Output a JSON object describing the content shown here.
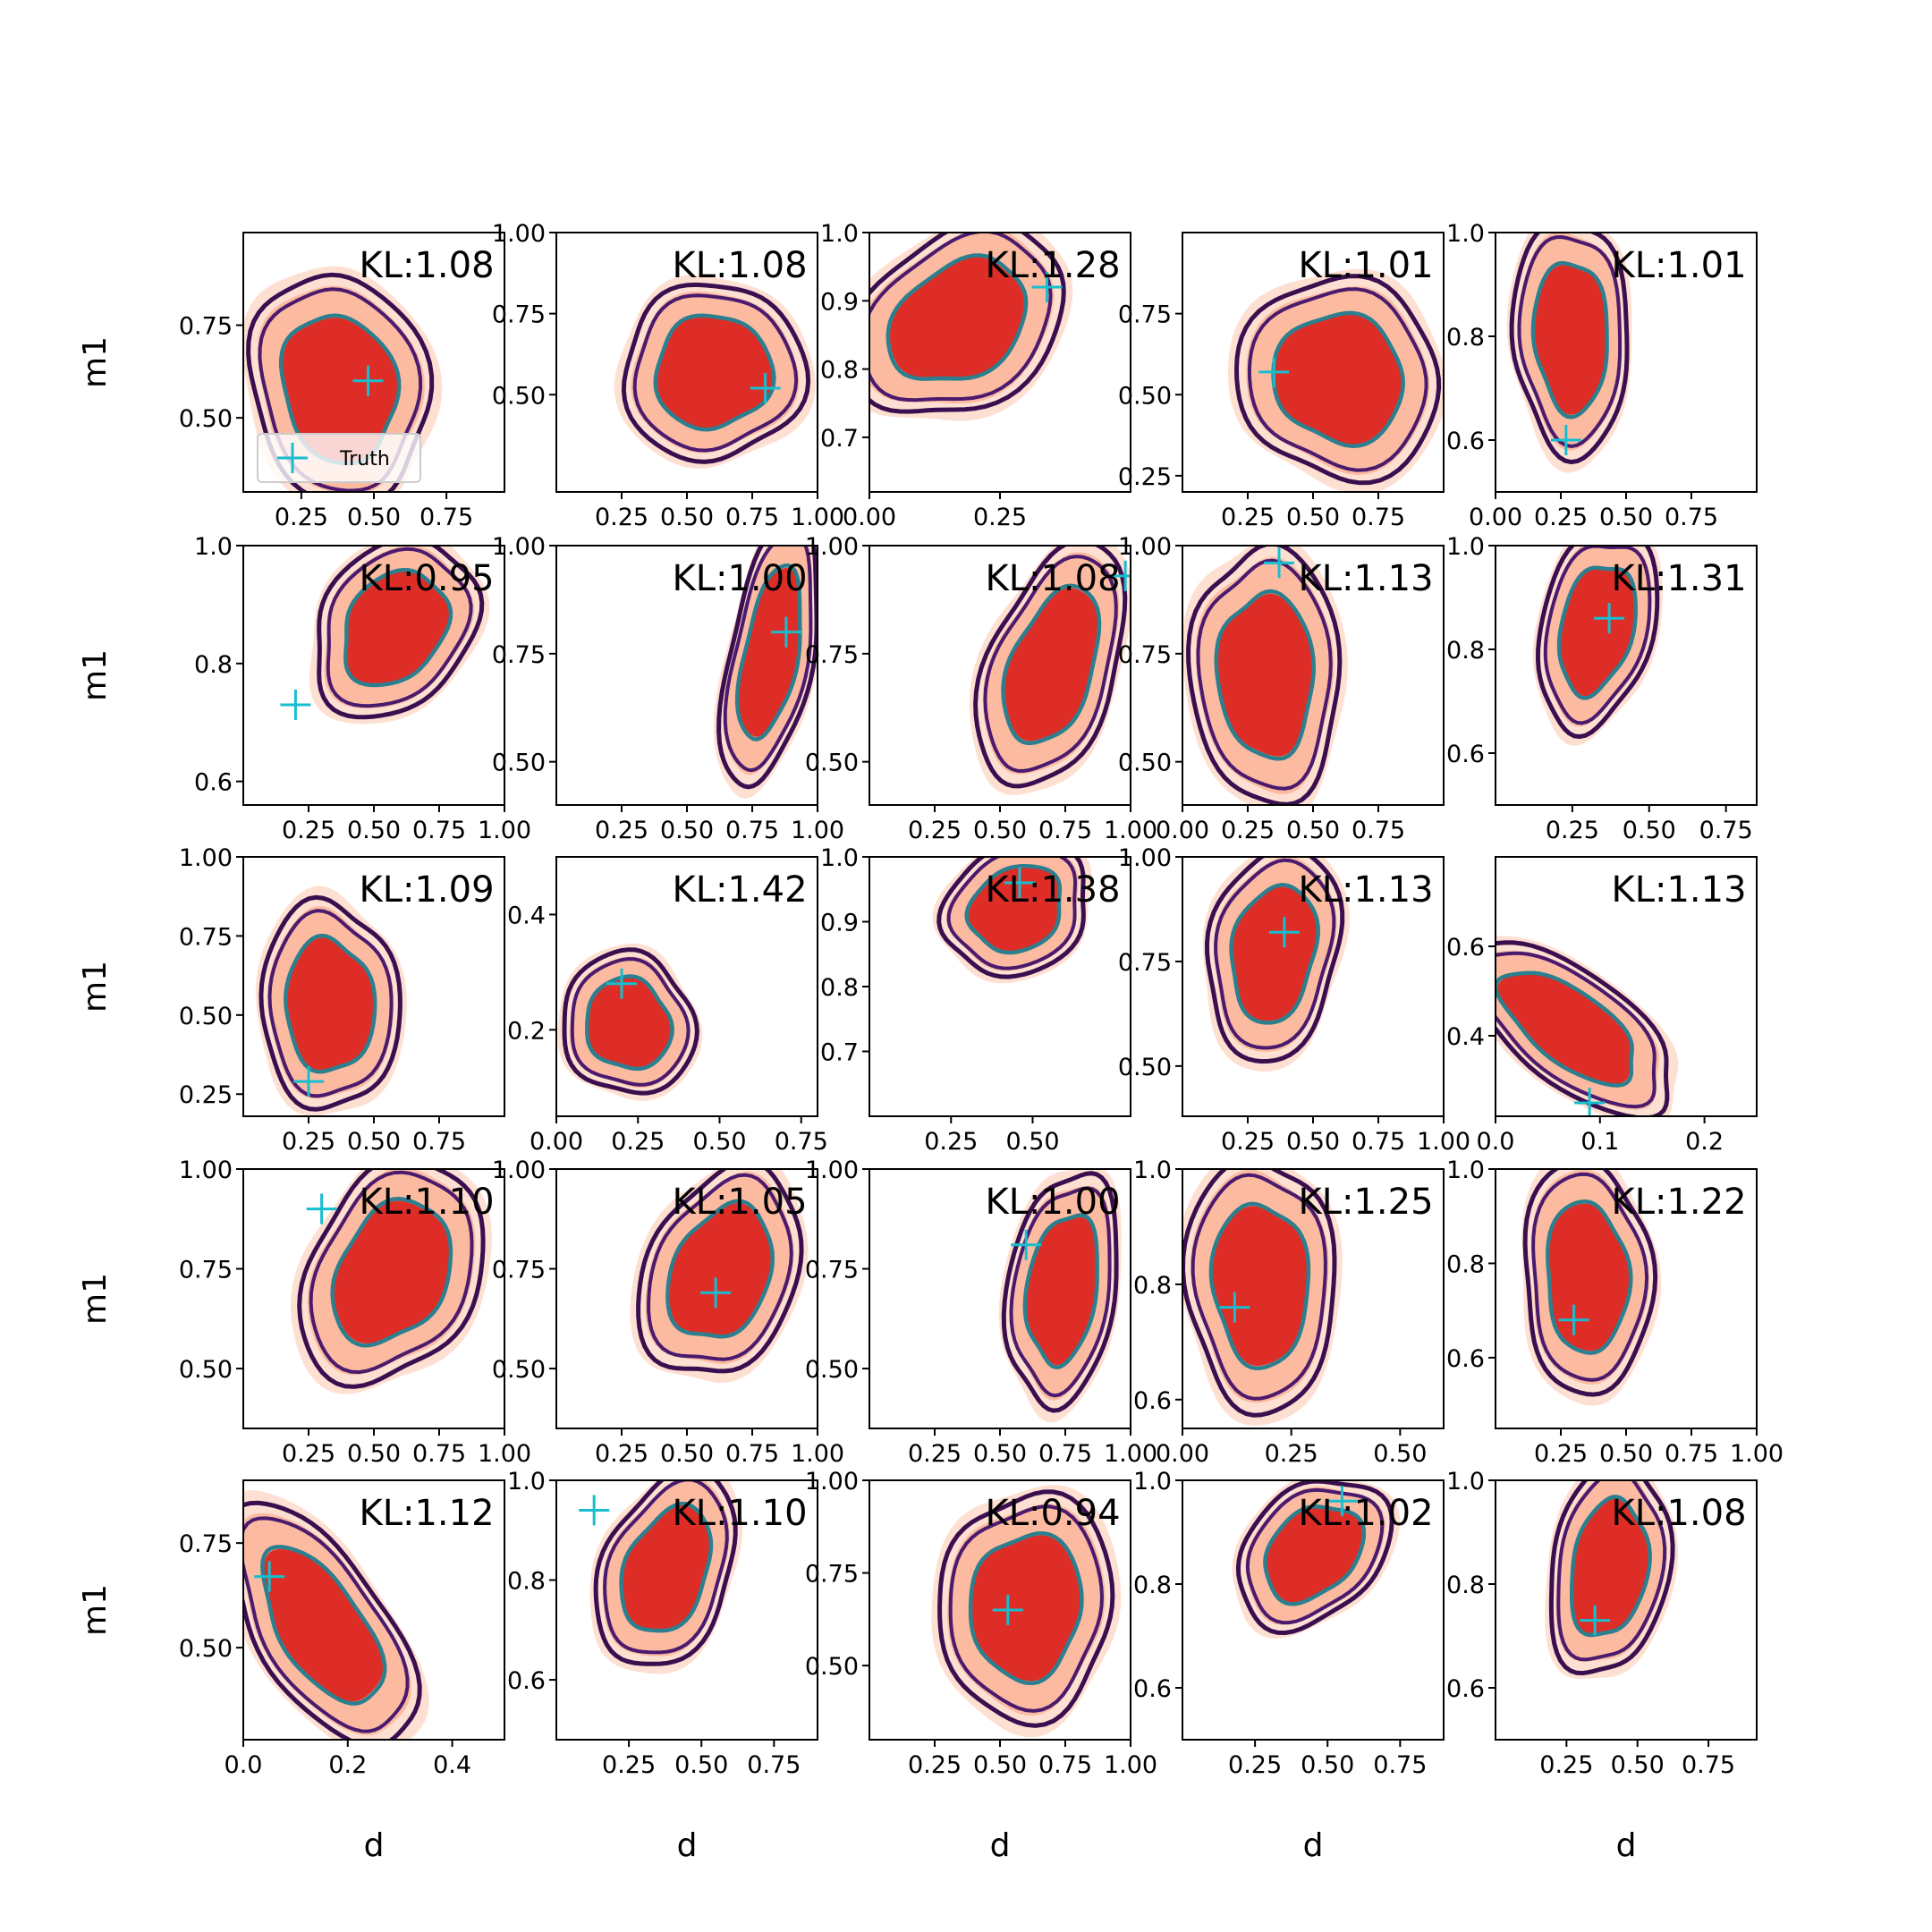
{
  "figure": {
    "xlabel": "d",
    "ylabel": "m1",
    "legend_label": "Truth"
  },
  "colors": {
    "fill_outer": "#fee0d2",
    "fill_mid": "#fcbba1",
    "fill_inner": "#de2d26",
    "contour_outer": "#3b0f4f",
    "contour_mid": "#4a1a6e",
    "contour_inner": "#2c7f8e",
    "truth_marker": "#17becf",
    "axes": "#000000"
  },
  "chart_data": [
    {
      "row": 0,
      "col": 0,
      "type": "contour",
      "kl": "KL:1.08",
      "title": "KL:1.08",
      "xlim": [
        0.05,
        0.95
      ],
      "ylim": [
        0.3,
        1.0
      ],
      "xticks": [
        0.25,
        0.5,
        0.75
      ],
      "xtick_labels": [
        "0.25",
        "0.50",
        "0.75"
      ],
      "yticks": [
        0.5,
        0.75
      ],
      "ytick_labels": [
        "0.50",
        "0.75"
      ],
      "center": [
        0.38,
        0.58
      ],
      "spread": [
        0.27,
        0.28
      ],
      "skew": -0.2,
      "truth": [
        0.48,
        0.6
      ],
      "legend": true
    },
    {
      "row": 0,
      "col": 1,
      "type": "contour",
      "kl": "KL:1.08",
      "title": "KL:1.08",
      "xlim": [
        0.0,
        1.0
      ],
      "ylim": [
        0.2,
        1.0
      ],
      "xticks": [
        0.25,
        0.5,
        0.75,
        1.0
      ],
      "xtick_labels": [
        "0.25",
        "0.50",
        "0.75",
        "1.00"
      ],
      "yticks": [
        0.5,
        0.75,
        1.0
      ],
      "ytick_labels": [
        "0.50",
        "0.75",
        "1.00"
      ],
      "center": [
        0.6,
        0.57
      ],
      "spread": [
        0.3,
        0.25
      ],
      "skew": 0.0,
      "truth": [
        0.8,
        0.52
      ]
    },
    {
      "row": 0,
      "col": 2,
      "type": "contour",
      "kl": "KL:1.28",
      "title": "KL:1.28",
      "xlim": [
        0.0,
        0.5
      ],
      "ylim": [
        0.62,
        1.0
      ],
      "xticks": [
        0.0,
        0.25
      ],
      "xtick_labels": [
        "0.00",
        "0.25"
      ],
      "yticks": [
        0.7,
        0.8,
        0.9,
        1.0
      ],
      "ytick_labels": [
        "0.7",
        "0.8",
        "0.9",
        "1.0"
      ],
      "center": [
        0.17,
        0.87
      ],
      "spread": [
        0.17,
        0.13
      ],
      "skew": 0.5,
      "truth": [
        0.34,
        0.92
      ]
    },
    {
      "row": 0,
      "col": 3,
      "type": "contour",
      "kl": "KL:1.01",
      "title": "KL:1.01",
      "xlim": [
        0.0,
        1.0
      ],
      "ylim": [
        0.2,
        1.0
      ],
      "xticks": [
        0.25,
        0.5,
        0.75
      ],
      "xtick_labels": [
        "0.25",
        "0.50",
        "0.75"
      ],
      "yticks": [
        0.25,
        0.5,
        0.75
      ],
      "ytick_labels": [
        "0.25",
        "0.50",
        "0.75"
      ],
      "center": [
        0.6,
        0.55
      ],
      "spread": [
        0.34,
        0.28
      ],
      "skew": 0.0,
      "truth": [
        0.35,
        0.57
      ]
    },
    {
      "row": 0,
      "col": 4,
      "type": "contour",
      "kl": "KL:1.01",
      "title": "KL:1.01",
      "xlim": [
        0.0,
        1.0
      ],
      "ylim": [
        0.5,
        1.0
      ],
      "xticks": [
        0.0,
        0.25,
        0.5,
        0.75
      ],
      "xtick_labels": [
        "0.00",
        "0.25",
        "0.50",
        "0.75"
      ],
      "yticks": [
        0.6,
        0.8,
        1.0
      ],
      "ytick_labels": [
        "0.6",
        "0.8",
        "1.0"
      ],
      "center": [
        0.29,
        0.8
      ],
      "spread": [
        0.2,
        0.2
      ],
      "skew": 0.0,
      "truth": [
        0.27,
        0.6
      ]
    },
    {
      "row": 1,
      "col": 0,
      "type": "contour",
      "kl": "KL:0.95",
      "title": "KL:0.95",
      "xlim": [
        0.0,
        1.0
      ],
      "ylim": [
        0.56,
        1.0
      ],
      "xticks": [
        0.25,
        0.5,
        0.75,
        1.0
      ],
      "xtick_labels": [
        "0.25",
        "0.50",
        "0.75",
        "1.00"
      ],
      "yticks": [
        0.6,
        0.8,
        1.0
      ],
      "ytick_labels": [
        "0.6",
        "0.8",
        "1.0"
      ],
      "center": [
        0.58,
        0.86
      ],
      "spread": [
        0.28,
        0.13
      ],
      "skew": 0.6,
      "truth": [
        0.2,
        0.73
      ]
    },
    {
      "row": 1,
      "col": 1,
      "type": "contour",
      "kl": "KL:1.00",
      "title": "KL:1.00",
      "xlim": [
        0.0,
        1.0
      ],
      "ylim": [
        0.4,
        1.0
      ],
      "xticks": [
        0.25,
        0.5,
        0.75,
        1.0
      ],
      "xtick_labels": [
        "0.25",
        "0.50",
        "0.75",
        "1.00"
      ],
      "yticks": [
        0.5,
        0.75,
        1.0
      ],
      "ytick_labels": [
        "0.50",
        "0.75",
        "1.00"
      ],
      "center": [
        0.82,
        0.75
      ],
      "spread": [
        0.15,
        0.27
      ],
      "skew": 0.3,
      "truth": [
        0.88,
        0.8
      ]
    },
    {
      "row": 1,
      "col": 2,
      "type": "contour",
      "kl": "KL:1.08",
      "title": "KL:1.08",
      "xlim": [
        0.0,
        1.0
      ],
      "ylim": [
        0.4,
        1.0
      ],
      "xticks": [
        0.25,
        0.5,
        0.75,
        1.0
      ],
      "xtick_labels": [
        "0.25",
        "0.50",
        "0.75",
        "1.00"
      ],
      "yticks": [
        0.5,
        0.75,
        1.0
      ],
      "ytick_labels": [
        "0.50",
        "0.75",
        "1.00"
      ],
      "center": [
        0.7,
        0.72
      ],
      "spread": [
        0.23,
        0.25
      ],
      "skew": 0.4,
      "truth": [
        0.98,
        0.93
      ]
    },
    {
      "row": 1,
      "col": 3,
      "type": "contour",
      "kl": "KL:1.13",
      "title": "KL:1.13",
      "xlim": [
        0.0,
        1.0
      ],
      "ylim": [
        0.4,
        1.0
      ],
      "xticks": [
        0.0,
        0.25,
        0.5,
        0.75
      ],
      "xtick_labels": [
        "0.00",
        "0.25",
        "0.50",
        "0.75"
      ],
      "yticks": [
        0.5,
        0.75,
        1.0
      ],
      "ytick_labels": [
        "0.50",
        "0.75",
        "1.00"
      ],
      "center": [
        0.32,
        0.7
      ],
      "spread": [
        0.25,
        0.27
      ],
      "skew": -0.1,
      "truth": [
        0.37,
        0.96
      ]
    },
    {
      "row": 1,
      "col": 4,
      "type": "contour",
      "kl": "KL:1.31",
      "title": "KL:1.31",
      "xlim": [
        0.0,
        0.85
      ],
      "ylim": [
        0.5,
        1.0
      ],
      "xticks": [
        0.25,
        0.5,
        0.75
      ],
      "xtick_labels": [
        "0.25",
        "0.50",
        "0.75"
      ],
      "yticks": [
        0.6,
        0.8,
        1.0
      ],
      "ytick_labels": [
        "0.6",
        "0.8",
        "1.0"
      ],
      "center": [
        0.33,
        0.84
      ],
      "spread": [
        0.16,
        0.18
      ],
      "skew": 0.3,
      "truth": [
        0.37,
        0.86
      ]
    },
    {
      "row": 2,
      "col": 0,
      "type": "contour",
      "kl": "KL:1.09",
      "title": "KL:1.09",
      "xlim": [
        0.0,
        1.0
      ],
      "ylim": [
        0.18,
        1.0
      ],
      "xticks": [
        0.25,
        0.5,
        0.75
      ],
      "xtick_labels": [
        "0.25",
        "0.50",
        "0.75"
      ],
      "yticks": [
        0.25,
        0.5,
        0.75,
        1.0
      ],
      "ytick_labels": [
        "0.25",
        "0.50",
        "0.75",
        "1.00"
      ],
      "center": [
        0.33,
        0.53
      ],
      "spread": [
        0.23,
        0.3
      ],
      "skew": 0.0,
      "truth": [
        0.25,
        0.29
      ]
    },
    {
      "row": 2,
      "col": 1,
      "type": "contour",
      "kl": "KL:1.42",
      "title": "KL:1.42",
      "xlim": [
        0.0,
        0.8
      ],
      "ylim": [
        0.05,
        0.5
      ],
      "xticks": [
        0.0,
        0.25,
        0.5,
        0.75
      ],
      "xtick_labels": [
        "0.00",
        "0.25",
        "0.50",
        "0.75"
      ],
      "yticks": [
        0.2,
        0.4
      ],
      "ytick_labels": [
        "0.2",
        "0.4"
      ],
      "center": [
        0.22,
        0.21
      ],
      "spread": [
        0.18,
        0.11
      ],
      "skew": 0.0,
      "truth": [
        0.2,
        0.28
      ]
    },
    {
      "row": 2,
      "col": 2,
      "type": "contour",
      "kl": "KL:1.38",
      "title": "KL:1.38",
      "xlim": [
        0.0,
        0.8
      ],
      "ylim": [
        0.6,
        1.0
      ],
      "xticks": [
        0.25,
        0.5
      ],
      "xtick_labels": [
        "0.25",
        "0.50"
      ],
      "yticks": [
        0.7,
        0.8,
        0.9,
        1.0
      ],
      "ytick_labels": [
        "0.7",
        "0.8",
        "0.9",
        "1.0"
      ],
      "center": [
        0.45,
        0.92
      ],
      "spread": [
        0.2,
        0.09
      ],
      "skew": 0.5,
      "truth": [
        0.46,
        0.96
      ]
    },
    {
      "row": 2,
      "col": 3,
      "type": "contour",
      "kl": "KL:1.13",
      "title": "KL:1.13",
      "xlim": [
        0.0,
        1.0
      ],
      "ylim": [
        0.38,
        1.0
      ],
      "xticks": [
        0.25,
        0.5,
        0.75,
        1.0
      ],
      "xtick_labels": [
        "0.25",
        "0.50",
        "0.75",
        "1.00"
      ],
      "yticks": [
        0.5,
        0.75,
        1.0
      ],
      "ytick_labels": [
        "0.50",
        "0.75",
        "1.00"
      ],
      "center": [
        0.35,
        0.77
      ],
      "spread": [
        0.23,
        0.22
      ],
      "skew": 0.2,
      "truth": [
        0.39,
        0.82
      ]
    },
    {
      "row": 2,
      "col": 4,
      "type": "contour",
      "kl": "KL:1.13",
      "title": "KL:1.13",
      "xlim": [
        0.0,
        0.25
      ],
      "ylim": [
        0.22,
        0.8
      ],
      "xticks": [
        0.0,
        0.1,
        0.2
      ],
      "xtick_labels": [
        "0.0",
        "0.1",
        "0.2"
      ],
      "yticks": [
        0.4,
        0.6
      ],
      "ytick_labels": [
        "0.4",
        "0.6"
      ],
      "center": [
        0.07,
        0.42
      ],
      "spread": [
        0.07,
        0.17
      ],
      "skew": -0.4,
      "truth": [
        0.09,
        0.25
      ]
    },
    {
      "row": 3,
      "col": 0,
      "type": "contour",
      "kl": "KL:1.10",
      "title": "KL:1.10",
      "xlim": [
        0.0,
        1.0
      ],
      "ylim": [
        0.35,
        1.0
      ],
      "xticks": [
        0.25,
        0.5,
        0.75,
        1.0
      ],
      "xtick_labels": [
        "0.25",
        "0.50",
        "0.75",
        "1.00"
      ],
      "yticks": [
        0.5,
        0.75,
        1.0
      ],
      "ytick_labels": [
        "0.50",
        "0.75",
        "1.00"
      ],
      "center": [
        0.57,
        0.74
      ],
      "spread": [
        0.3,
        0.25
      ],
      "skew": 0.3,
      "truth": [
        0.3,
        0.9
      ]
    },
    {
      "row": 3,
      "col": 1,
      "type": "contour",
      "kl": "KL:1.05",
      "title": "KL:1.05",
      "xlim": [
        0.0,
        1.0
      ],
      "ylim": [
        0.35,
        1.0
      ],
      "xticks": [
        0.25,
        0.5,
        0.75,
        1.0
      ],
      "xtick_labels": [
        "0.25",
        "0.50",
        "0.75",
        "1.00"
      ],
      "yticks": [
        0.5,
        0.75,
        1.0
      ],
      "ytick_labels": [
        "0.50",
        "0.75",
        "1.00"
      ],
      "center": [
        0.63,
        0.74
      ],
      "spread": [
        0.26,
        0.24
      ],
      "skew": 0.3,
      "truth": [
        0.61,
        0.69
      ]
    },
    {
      "row": 3,
      "col": 2,
      "type": "contour",
      "kl": "KL:1.00",
      "title": "KL:1.00",
      "xlim": [
        0.0,
        1.0
      ],
      "ylim": [
        0.35,
        1.0
      ],
      "xticks": [
        0.25,
        0.5,
        0.75,
        1.0
      ],
      "xtick_labels": [
        "0.25",
        "0.50",
        "0.75",
        "1.00"
      ],
      "yticks": [
        0.5,
        0.75,
        1.0
      ],
      "ytick_labels": [
        "0.50",
        "0.75",
        "1.00"
      ],
      "center": [
        0.74,
        0.7
      ],
      "spread": [
        0.18,
        0.27
      ],
      "skew": 0.2,
      "truth": [
        0.6,
        0.81
      ]
    },
    {
      "row": 3,
      "col": 3,
      "type": "contour",
      "kl": "KL:1.25",
      "title": "KL:1.25",
      "xlim": [
        0.0,
        0.6
      ],
      "ylim": [
        0.55,
        1.0
      ],
      "xticks": [
        0.0,
        0.25,
        0.5
      ],
      "xtick_labels": [
        "0.00",
        "0.25",
        "0.50"
      ],
      "yticks": [
        0.6,
        0.8,
        1.0
      ],
      "ytick_labels": [
        "0.6",
        "0.8",
        "1.0"
      ],
      "center": [
        0.18,
        0.8
      ],
      "spread": [
        0.15,
        0.2
      ],
      "skew": 0.0,
      "truth": [
        0.12,
        0.76
      ]
    },
    {
      "row": 3,
      "col": 4,
      "type": "contour",
      "kl": "KL:1.22",
      "title": "KL:1.22",
      "xlim": [
        0.0,
        1.0
      ],
      "ylim": [
        0.45,
        1.0
      ],
      "xticks": [
        0.25,
        0.5,
        0.75,
        1.0
      ],
      "xtick_labels": [
        "0.25",
        "0.50",
        "0.75",
        "1.00"
      ],
      "yticks": [
        0.6,
        0.8,
        1.0
      ],
      "ytick_labels": [
        "0.6",
        "0.8",
        "1.0"
      ],
      "center": [
        0.35,
        0.77
      ],
      "spread": [
        0.22,
        0.22
      ],
      "skew": 0.0,
      "truth": [
        0.3,
        0.68
      ]
    },
    {
      "row": 4,
      "col": 0,
      "type": "contour",
      "kl": "KL:1.12",
      "title": "KL:1.12",
      "xlim": [
        0.0,
        0.5
      ],
      "ylim": [
        0.28,
        0.9
      ],
      "xticks": [
        0.0,
        0.2,
        0.4
      ],
      "xtick_labels": [
        "0.0",
        "0.2",
        "0.4"
      ],
      "yticks": [
        0.5,
        0.75
      ],
      "ytick_labels": [
        "0.50",
        "0.75"
      ],
      "center": [
        0.15,
        0.55
      ],
      "spread": [
        0.13,
        0.25
      ],
      "skew": -0.4,
      "truth": [
        0.05,
        0.67
      ]
    },
    {
      "row": 4,
      "col": 1,
      "type": "contour",
      "kl": "KL:1.10",
      "title": "KL:1.10",
      "xlim": [
        0.0,
        0.9
      ],
      "ylim": [
        0.48,
        1.0
      ],
      "xticks": [
        0.25,
        0.5,
        0.75
      ],
      "xtick_labels": [
        "0.25",
        "0.50",
        "0.75"
      ],
      "yticks": [
        0.6,
        0.8,
        1.0
      ],
      "ytick_labels": [
        "0.6",
        "0.8",
        "1.0"
      ],
      "center": [
        0.38,
        0.82
      ],
      "spread": [
        0.21,
        0.17
      ],
      "skew": 0.4,
      "truth": [
        0.13,
        0.94
      ]
    },
    {
      "row": 4,
      "col": 2,
      "type": "contour",
      "kl": "KL:0.94",
      "title": "KL:0.94",
      "xlim": [
        0.0,
        1.0
      ],
      "ylim": [
        0.3,
        1.0
      ],
      "xticks": [
        0.25,
        0.5,
        0.75,
        1.0
      ],
      "xtick_labels": [
        "0.25",
        "0.50",
        "0.75",
        "1.00"
      ],
      "yticks": [
        0.5,
        0.75,
        1.0
      ],
      "ytick_labels": [
        "0.50",
        "0.75",
        "1.00"
      ],
      "center": [
        0.6,
        0.66
      ],
      "spread": [
        0.3,
        0.27
      ],
      "skew": 0.0,
      "truth": [
        0.53,
        0.65
      ]
    },
    {
      "row": 4,
      "col": 3,
      "type": "contour",
      "kl": "KL:1.02",
      "title": "KL:1.02",
      "xlim": [
        0.0,
        0.9
      ],
      "ylim": [
        0.5,
        1.0
      ],
      "xticks": [
        0.25,
        0.5,
        0.75
      ],
      "xtick_labels": [
        "0.25",
        "0.50",
        "0.75"
      ],
      "yticks": [
        0.6,
        0.8,
        1.0
      ],
      "ytick_labels": [
        "0.6",
        "0.8",
        "1.0"
      ],
      "center": [
        0.45,
        0.86
      ],
      "spread": [
        0.22,
        0.13
      ],
      "skew": 0.5,
      "truth": [
        0.55,
        0.96
      ]
    },
    {
      "row": 4,
      "col": 4,
      "type": "contour",
      "kl": "KL:1.08",
      "title": "KL:1.08",
      "xlim": [
        0.0,
        0.92
      ],
      "ylim": [
        0.5,
        1.0
      ],
      "xticks": [
        0.25,
        0.5,
        0.75
      ],
      "xtick_labels": [
        "0.25",
        "0.50",
        "0.75"
      ],
      "yticks": [
        0.6,
        0.8,
        1.0
      ],
      "ytick_labels": [
        "0.6",
        "0.8",
        "1.0"
      ],
      "center": [
        0.4,
        0.83
      ],
      "spread": [
        0.18,
        0.19
      ],
      "skew": 0.2,
      "truth": [
        0.35,
        0.73
      ]
    }
  ]
}
